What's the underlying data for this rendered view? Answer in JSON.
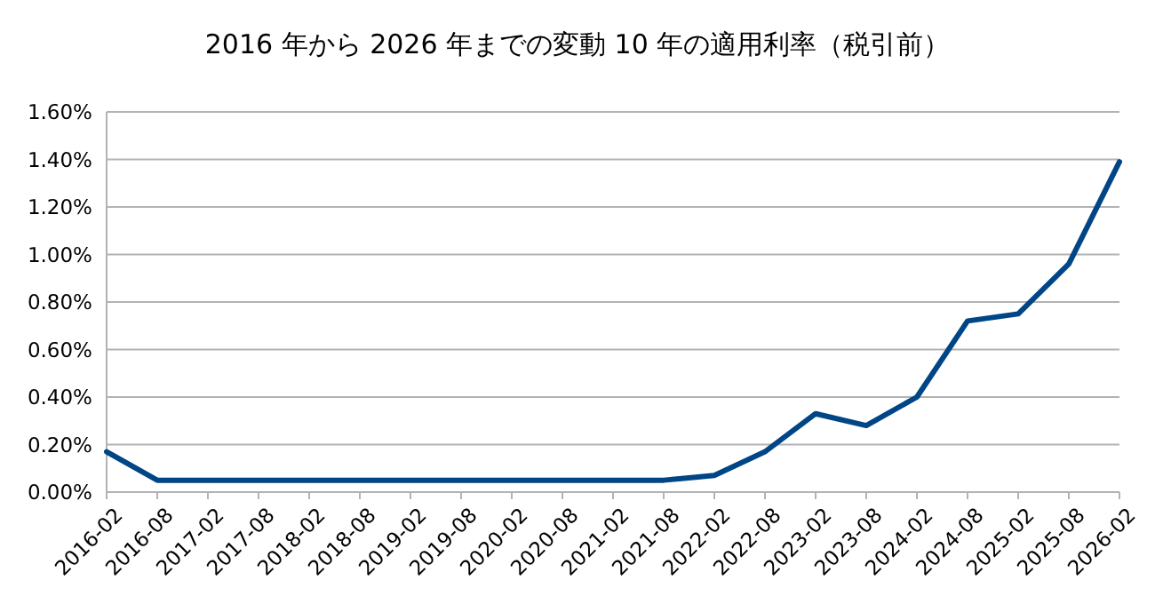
{
  "chart_data": {
    "type": "line",
    "title": "2016 年から 2026 年までの変動 10 年の適用利率（税引前）",
    "categories": [
      "2016-02",
      "2016-08",
      "2017-02",
      "2017-08",
      "2018-02",
      "2018-08",
      "2019-02",
      "2019-08",
      "2020-02",
      "2020-08",
      "2021-02",
      "2021-08",
      "2022-02",
      "2022-08",
      "2023-02",
      "2023-08",
      "2024-02",
      "2024-08",
      "2025-02",
      "2025-08",
      "2026-02"
    ],
    "series": [
      {
        "color": "#004586",
        "values": [
          0.17,
          0.05,
          0.05,
          0.05,
          0.05,
          0.05,
          0.05,
          0.05,
          0.05,
          0.05,
          0.05,
          0.05,
          0.07,
          0.17,
          0.33,
          0.28,
          0.4,
          0.72,
          0.75,
          0.96,
          1.39
        ]
      }
    ],
    "ylim": [
      0,
      1.6
    ],
    "yticks": [
      {
        "value": 0,
        "label": "0.00%"
      },
      {
        "value": 0.2,
        "label": "0.20%"
      },
      {
        "value": 0.4,
        "label": "0.40%"
      },
      {
        "value": 0.6,
        "label": "0.60%"
      },
      {
        "value": 0.8,
        "label": "0.80%"
      },
      {
        "value": 1.0,
        "label": "1.00%"
      },
      {
        "value": 1.2,
        "label": "1.20%"
      },
      {
        "value": 1.4,
        "label": "1.40%"
      },
      {
        "value": 1.6,
        "label": "1.60%"
      }
    ],
    "grid": "y",
    "marker": "none",
    "line_style": "solid"
  }
}
